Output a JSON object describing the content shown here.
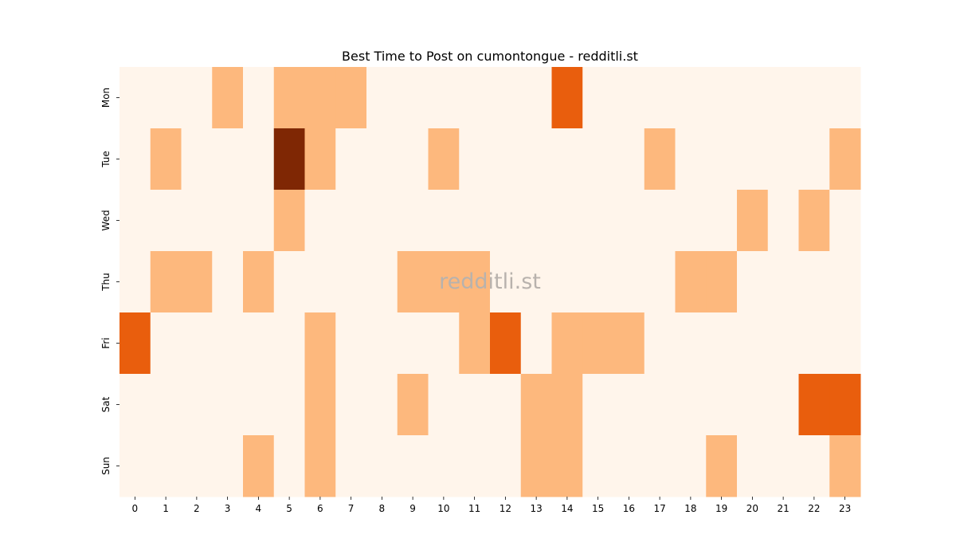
{
  "chart_data": {
    "type": "heatmap",
    "title": "Best Time to Post on cumontongue - redditli.st",
    "xlabel": "",
    "ylabel": "",
    "x": [
      "0",
      "1",
      "2",
      "3",
      "4",
      "5",
      "6",
      "7",
      "8",
      "9",
      "10",
      "11",
      "12",
      "13",
      "14",
      "15",
      "16",
      "17",
      "18",
      "19",
      "20",
      "21",
      "22",
      "23"
    ],
    "y": [
      "Mon",
      "Tue",
      "Wed",
      "Thu",
      "Fri",
      "Sat",
      "Sun"
    ],
    "values": [
      [
        0,
        0,
        0,
        1,
        0,
        1,
        1,
        1,
        0,
        0,
        0,
        0,
        0,
        0,
        2,
        0,
        0,
        0,
        0,
        0,
        0,
        0,
        0,
        0
      ],
      [
        0,
        1,
        0,
        0,
        0,
        3,
        1,
        0,
        0,
        0,
        1,
        0,
        0,
        0,
        0,
        0,
        0,
        1,
        0,
        0,
        0,
        0,
        0,
        1
      ],
      [
        0,
        0,
        0,
        0,
        0,
        1,
        0,
        0,
        0,
        0,
        0,
        0,
        0,
        0,
        0,
        0,
        0,
        0,
        0,
        0,
        1,
        0,
        1,
        0
      ],
      [
        0,
        1,
        1,
        0,
        1,
        0,
        0,
        0,
        0,
        1,
        1,
        1,
        0,
        0,
        0,
        0,
        0,
        0,
        1,
        1,
        0,
        0,
        0,
        0
      ],
      [
        2,
        0,
        0,
        0,
        0,
        0,
        1,
        0,
        0,
        0,
        0,
        1,
        2,
        0,
        1,
        1,
        1,
        0,
        0,
        0,
        0,
        0,
        0,
        0
      ],
      [
        0,
        0,
        0,
        0,
        0,
        0,
        1,
        0,
        0,
        1,
        0,
        0,
        0,
        1,
        1,
        0,
        0,
        0,
        0,
        0,
        0,
        0,
        2,
        2
      ],
      [
        0,
        0,
        0,
        0,
        1,
        0,
        1,
        0,
        0,
        0,
        0,
        0,
        0,
        1,
        1,
        0,
        0,
        0,
        0,
        1,
        0,
        0,
        0,
        1
      ]
    ],
    "colorscale": {
      "0": "#fff5eb",
      "1": "#fdb87d",
      "2": "#e95e0d",
      "3": "#7f2704"
    },
    "colorbar": false,
    "watermark": "redditli.st"
  }
}
